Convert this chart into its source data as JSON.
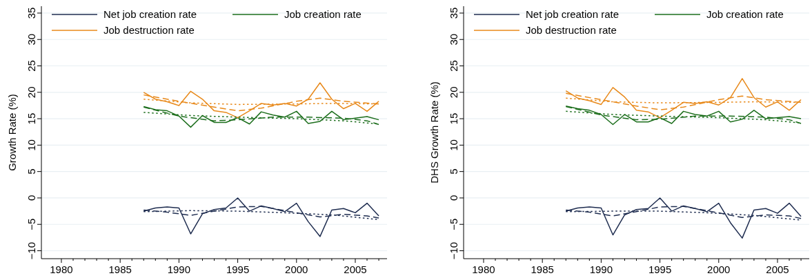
{
  "chart_data": [
    {
      "type": "line",
      "ylabel": "Growth Rate (%)",
      "x": [
        1987,
        1988,
        1989,
        1990,
        1991,
        1992,
        1993,
        1994,
        1995,
        1996,
        1997,
        1998,
        1999,
        2000,
        2001,
        2002,
        2003,
        2004,
        2005,
        2006,
        2007
      ],
      "xlim": [
        1978.3,
        2007.7
      ],
      "ylim": [
        -11.5,
        36.3
      ],
      "xticks": [
        1980,
        {
          "value": 1981,
          "label": null
        },
        {
          "value": 1982,
          "label": null
        },
        {
          "value": 1983,
          "label": null
        },
        {
          "value": 1984,
          "label": null
        },
        1985,
        {
          "value": 1986,
          "label": null
        },
        {
          "value": 1987,
          "label": null
        },
        {
          "value": 1988,
          "label": null
        },
        {
          "value": 1989,
          "label": null
        },
        1990,
        {
          "value": 1991,
          "label": null
        },
        {
          "value": 1992,
          "label": null
        },
        {
          "value": 1993,
          "label": null
        },
        {
          "value": 1994,
          "label": null
        },
        1995,
        {
          "value": 1996,
          "label": null
        },
        {
          "value": 1997,
          "label": null
        },
        {
          "value": 1998,
          "label": null
        },
        {
          "value": 1999,
          "label": null
        },
        2000,
        {
          "value": 2001,
          "label": null
        },
        {
          "value": 2002,
          "label": null
        },
        {
          "value": 2003,
          "label": null
        },
        {
          "value": 2004,
          "label": null
        },
        2005,
        {
          "value": 2006,
          "label": null
        },
        {
          "value": 2007,
          "label": null
        }
      ],
      "yticks": [
        -10,
        -5,
        0,
        5,
        10,
        15,
        20,
        25,
        30,
        35
      ],
      "grid": "y",
      "legend": "top",
      "series": [
        {
          "name": "Net job creation rate",
          "color": "#1f2d50",
          "values": [
            -2.5,
            -1.9,
            -1.7,
            -1.9,
            -6.8,
            -3.0,
            -2.2,
            -1.9,
            0.0,
            -2.5,
            -1.5,
            -2.0,
            -2.6,
            -1.0,
            -4.5,
            -7.3,
            -2.3,
            -2.0,
            -2.8,
            -1.0,
            -3.4
          ]
        },
        {
          "name": "Job creation rate",
          "color": "#1c6e1c",
          "values": [
            17.3,
            16.7,
            16.5,
            15.5,
            13.4,
            15.6,
            14.3,
            14.3,
            15.2,
            14.0,
            16.3,
            15.7,
            15.3,
            16.4,
            14.1,
            14.5,
            16.4,
            14.8,
            15.1,
            15.4,
            14.8
          ]
        },
        {
          "name": "Job destruction rate",
          "color": "#e8891a",
          "values": [
            20.0,
            18.7,
            18.2,
            17.5,
            20.2,
            18.7,
            16.5,
            16.2,
            15.2,
            16.5,
            17.9,
            17.6,
            17.9,
            17.4,
            18.7,
            21.8,
            18.7,
            16.9,
            17.9,
            16.4,
            18.3
          ]
        },
        {
          "type": "line",
          "line_style": "dashed",
          "color": "#1f2d50",
          "x": [
            1987,
            1989,
            1991,
            1993,
            1995,
            1997,
            1999,
            2002,
            2004,
            2006,
            2007
          ],
          "values": [
            -2.3,
            -2.7,
            -3.3,
            -2.5,
            -1.7,
            -1.6,
            -2.4,
            -3.6,
            -3.1,
            -3.4,
            -3.8
          ]
        },
        {
          "type": "line",
          "line_style": "dotted",
          "color": "#1f2d50",
          "x": [
            1987,
            1991,
            1995,
            1999,
            2003,
            2007
          ],
          "values": [
            -2.6,
            -2.4,
            -2.5,
            -2.8,
            -3.2,
            -4.1
          ]
        },
        {
          "type": "line",
          "line_style": "dashed",
          "color": "#1c6e1c",
          "x": [
            1987,
            1990,
            1993,
            1995,
            1998,
            2001,
            2004,
            2006,
            2007
          ],
          "values": [
            17.2,
            15.5,
            14.6,
            14.8,
            15.3,
            15.3,
            15.1,
            14.6,
            13.9
          ]
        },
        {
          "type": "line",
          "line_style": "dotted",
          "color": "#1c6e1c",
          "x": [
            1987,
            1991,
            1995,
            2000,
            2004,
            2007
          ],
          "values": [
            16.2,
            15.6,
            15.3,
            15.0,
            14.6,
            14.0
          ]
        },
        {
          "type": "line",
          "line_style": "dashed",
          "color": "#e8891a",
          "x": [
            1987,
            1990,
            1993,
            1995,
            1997,
            2000,
            2002,
            2004,
            2007
          ],
          "values": [
            19.5,
            18.3,
            17.2,
            16.5,
            17.0,
            18.3,
            18.9,
            18.3,
            17.8
          ]
        },
        {
          "type": "line",
          "line_style": "dotted",
          "color": "#e8891a",
          "x": [
            1987,
            1991,
            1995,
            2000,
            2003,
            2007
          ],
          "values": [
            18.7,
            18.0,
            17.7,
            17.8,
            17.9,
            17.8
          ]
        }
      ]
    },
    {
      "type": "line",
      "ylabel": "DHS Growth Rate (%)",
      "x": [
        1987,
        1988,
        1989,
        1990,
        1991,
        1992,
        1993,
        1994,
        1995,
        1996,
        1997,
        1998,
        1999,
        2000,
        2001,
        2002,
        2003,
        2004,
        2005,
        2006,
        2007
      ],
      "xlim": [
        1978.3,
        2007.7
      ],
      "ylim": [
        -11.5,
        36.3
      ],
      "xticks": [
        1980,
        {
          "value": 1981,
          "label": null
        },
        {
          "value": 1982,
          "label": null
        },
        {
          "value": 1983,
          "label": null
        },
        {
          "value": 1984,
          "label": null
        },
        1985,
        {
          "value": 1986,
          "label": null
        },
        {
          "value": 1987,
          "label": null
        },
        {
          "value": 1988,
          "label": null
        },
        {
          "value": 1989,
          "label": null
        },
        1990,
        {
          "value": 1991,
          "label": null
        },
        {
          "value": 1992,
          "label": null
        },
        {
          "value": 1993,
          "label": null
        },
        {
          "value": 1994,
          "label": null
        },
        1995,
        {
          "value": 1996,
          "label": null
        },
        {
          "value": 1997,
          "label": null
        },
        {
          "value": 1998,
          "label": null
        },
        {
          "value": 1999,
          "label": null
        },
        2000,
        {
          "value": 2001,
          "label": null
        },
        {
          "value": 2002,
          "label": null
        },
        {
          "value": 2003,
          "label": null
        },
        {
          "value": 2004,
          "label": null
        },
        2005,
        {
          "value": 2006,
          "label": null
        },
        {
          "value": 2007,
          "label": null
        }
      ],
      "yticks": [
        -10,
        -5,
        0,
        5,
        10,
        15,
        20,
        25,
        30,
        35
      ],
      "grid": "y",
      "legend": "top",
      "series": [
        {
          "name": "Net job creation rate",
          "color": "#1f2d50",
          "values": [
            -2.5,
            -1.9,
            -1.7,
            -1.9,
            -7.0,
            -3.2,
            -2.2,
            -2.0,
            0.0,
            -2.5,
            -1.5,
            -2.0,
            -2.6,
            -1.0,
            -4.7,
            -7.6,
            -2.3,
            -2.0,
            -2.9,
            -1.0,
            -3.5
          ]
        },
        {
          "name": "Job creation rate",
          "color": "#1c6e1c",
          "values": [
            17.4,
            16.9,
            16.6,
            15.8,
            13.9,
            15.8,
            14.4,
            14.4,
            15.2,
            14.1,
            16.4,
            15.8,
            15.5,
            16.4,
            14.4,
            14.9,
            16.6,
            15.0,
            15.2,
            15.4,
            15.0
          ]
        },
        {
          "name": "Job destruction rate",
          "color": "#e8891a",
          "values": [
            20.3,
            18.9,
            18.4,
            17.7,
            20.9,
            19.1,
            16.6,
            16.3,
            15.2,
            16.6,
            18.1,
            17.9,
            18.2,
            17.6,
            19.0,
            22.6,
            19.0,
            17.2,
            18.2,
            16.6,
            18.6
          ]
        },
        {
          "type": "line",
          "line_style": "dashed",
          "color": "#1f2d50",
          "x": [
            1987,
            1989,
            1991,
            1993,
            1995,
            1997,
            1999,
            2002,
            2004,
            2006,
            2007
          ],
          "values": [
            -2.3,
            -2.7,
            -3.4,
            -2.6,
            -1.7,
            -1.6,
            -2.4,
            -3.7,
            -3.2,
            -3.4,
            -3.9
          ]
        },
        {
          "type": "line",
          "line_style": "dotted",
          "color": "#1f2d50",
          "x": [
            1987,
            1991,
            1995,
            1999,
            2003,
            2007
          ],
          "values": [
            -2.6,
            -2.5,
            -2.5,
            -2.8,
            -3.3,
            -4.2
          ]
        },
        {
          "type": "line",
          "line_style": "dashed",
          "color": "#1c6e1c",
          "x": [
            1987,
            1990,
            1993,
            1995,
            1998,
            2001,
            2004,
            2006,
            2007
          ],
          "values": [
            17.3,
            15.7,
            14.8,
            14.9,
            15.5,
            15.5,
            15.3,
            14.8,
            14.1
          ]
        },
        {
          "type": "line",
          "line_style": "dotted",
          "color": "#1c6e1c",
          "x": [
            1987,
            1991,
            1995,
            2000,
            2004,
            2007
          ],
          "values": [
            16.4,
            15.8,
            15.5,
            15.2,
            14.8,
            14.2
          ]
        },
        {
          "type": "line",
          "line_style": "dashed",
          "color": "#e8891a",
          "x": [
            1987,
            1990,
            1993,
            1995,
            1997,
            2000,
            2002,
            2004,
            2007
          ],
          "values": [
            19.8,
            18.6,
            17.4,
            16.7,
            17.2,
            18.6,
            19.3,
            18.6,
            18.1
          ]
        },
        {
          "type": "line",
          "line_style": "dotted",
          "color": "#e8891a",
          "x": [
            1987,
            1991,
            1995,
            2000,
            2003,
            2007
          ],
          "values": [
            18.9,
            18.2,
            18.0,
            18.1,
            18.2,
            18.1
          ]
        }
      ]
    }
  ]
}
